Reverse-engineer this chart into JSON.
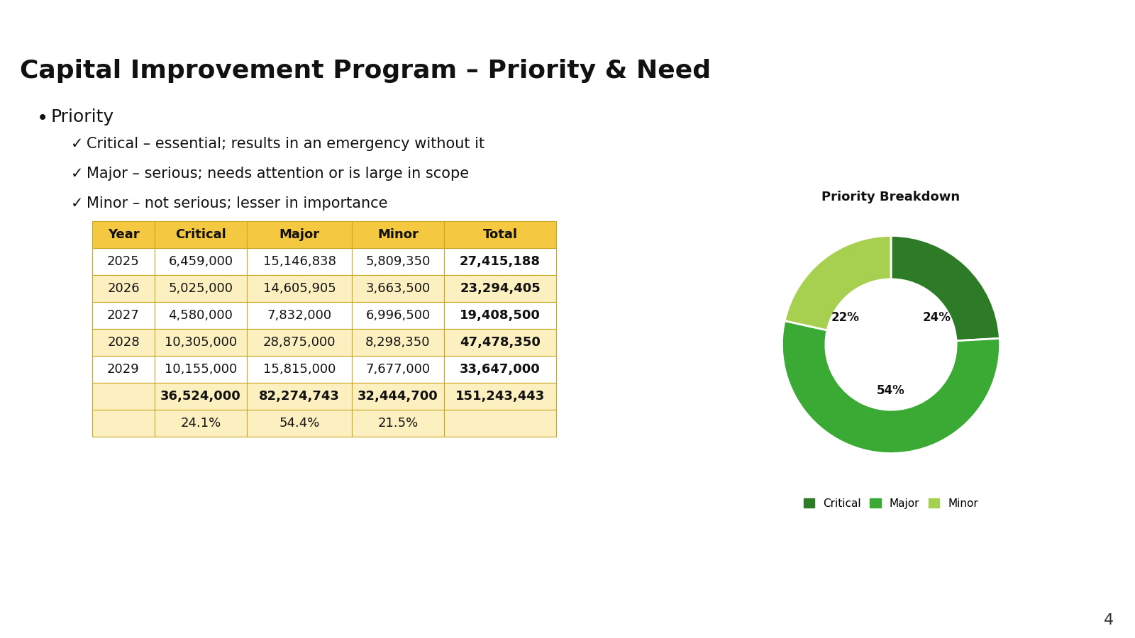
{
  "title": "Capital Improvement Program – Priority & Need",
  "title_fontsize": 26,
  "background_color": "#ffffff",
  "header_bar_color": "#3aaa35",
  "bullet_text": "Priority",
  "checkmarks": [
    "Critical – essential; results in an emergency without it",
    "Major – serious; needs attention or is large in scope",
    "Minor – not serious; lesser in importance"
  ],
  "table_headers": [
    "Year",
    "Critical",
    "Major",
    "Minor",
    "Total"
  ],
  "table_header_bg": "#f5c842",
  "table_alt_bg": "#fdf0c0",
  "table_white_bg": "#ffffff",
  "table_border_color": "#c8a820",
  "table_data": [
    [
      "2025",
      "6,459,000",
      "15,146,838",
      "5,809,350",
      "27,415,188"
    ],
    [
      "2026",
      "5,025,000",
      "14,605,905",
      "3,663,500",
      "23,294,405"
    ],
    [
      "2027",
      "4,580,000",
      "7,832,000",
      "6,996,500",
      "19,408,500"
    ],
    [
      "2028",
      "10,305,000",
      "28,875,000",
      "8,298,350",
      "47,478,350"
    ],
    [
      "2029",
      "10,155,000",
      "15,815,000",
      "7,677,000",
      "33,647,000"
    ]
  ],
  "table_totals": [
    "",
    "36,524,000",
    "82,274,743",
    "32,444,700",
    "151,243,443"
  ],
  "table_pcts": [
    "",
    "24.1%",
    "54.4%",
    "21.5%",
    ""
  ],
  "donut_title": "Priority Breakdown",
  "donut_values": [
    24.1,
    54.4,
    21.5
  ],
  "donut_colors": [
    "#2d7a27",
    "#3aaa35",
    "#a8d050"
  ],
  "donut_labels": [
    "Critical",
    "Major",
    "Minor"
  ],
  "donut_pct_labels": [
    "24%",
    "54%",
    "22%"
  ],
  "donut_legend_colors": [
    "#2d7a27",
    "#3aaa35",
    "#a8d050"
  ],
  "page_number": "4",
  "star_color": "#ffffff"
}
